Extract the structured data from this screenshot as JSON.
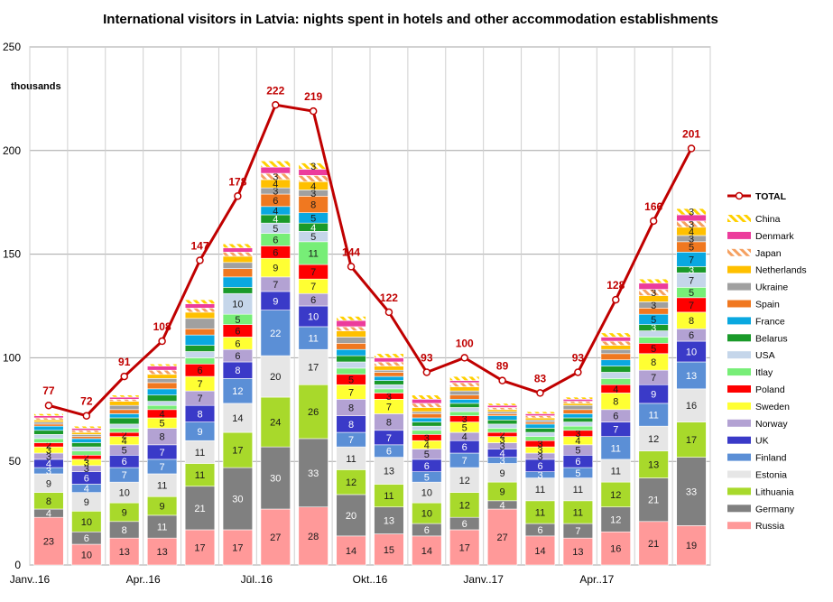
{
  "chart_data": {
    "type": "bar",
    "stacked": true,
    "title": "International visitors in Latvia: nights spent in hotels and other accommodation  establishments",
    "unit_label": "thousands",
    "ylim": [
      0,
      250
    ],
    "yticks": [
      "0",
      "50",
      "100",
      "150",
      "200",
      "250"
    ],
    "grid": true,
    "legend_position": "right",
    "x_tick_labels": [
      "Janv..16",
      "",
      "",
      "Apr..16",
      "",
      "",
      "Jūl..16",
      "",
      "",
      "Okt..16",
      "",
      "",
      "Janv..17",
      "",
      "",
      "Apr..17",
      "",
      ""
    ],
    "series": [
      {
        "name": "Russia",
        "color": "#ff9999",
        "pattern": "none",
        "values": [
          23,
          10,
          13,
          13,
          17,
          17,
          27,
          28,
          14,
          15,
          14,
          17,
          27,
          14,
          13,
          16,
          21,
          19
        ],
        "labels": [
          true,
          true,
          true,
          true,
          true,
          true,
          true,
          true,
          true,
          true,
          true,
          true,
          true,
          true,
          true,
          true,
          true,
          true
        ]
      },
      {
        "name": "Germany",
        "color": "#808080",
        "pattern": "none",
        "values": [
          4,
          6,
          8,
          11,
          21,
          30,
          30,
          33,
          20,
          13,
          6,
          6,
          4,
          6,
          7,
          12,
          21,
          33
        ],
        "labels": [
          true,
          true,
          true,
          true,
          true,
          true,
          true,
          true,
          true,
          true,
          true,
          true,
          true,
          true,
          true,
          true,
          true,
          true
        ]
      },
      {
        "name": "Lithuania",
        "color": "#a8d92b",
        "pattern": "none",
        "values": [
          8,
          10,
          9,
          9,
          11,
          17,
          24,
          26,
          12,
          11,
          10,
          12,
          9,
          11,
          11,
          12,
          13,
          17
        ],
        "labels": [
          true,
          true,
          true,
          true,
          true,
          true,
          true,
          true,
          true,
          true,
          true,
          true,
          true,
          true,
          true,
          true,
          true,
          true
        ]
      },
      {
        "name": "Estonia",
        "color": "#e6e6e6",
        "pattern": "none",
        "values": [
          9,
          9,
          10,
          11,
          11,
          14,
          20,
          17,
          11,
          13,
          10,
          12,
          9,
          11,
          11,
          11,
          12,
          16
        ],
        "labels": [
          true,
          true,
          true,
          true,
          true,
          true,
          true,
          true,
          true,
          true,
          true,
          true,
          true,
          true,
          true,
          true,
          true,
          true
        ]
      },
      {
        "name": "Finland",
        "color": "#5b8fd6",
        "pattern": "none",
        "values": [
          3,
          4,
          7,
          7,
          9,
          12,
          22,
          11,
          7,
          6,
          5,
          7,
          3,
          3,
          5,
          11,
          11,
          13
        ],
        "labels": [
          true,
          true,
          true,
          true,
          true,
          true,
          true,
          true,
          true,
          true,
          true,
          true,
          true,
          true,
          true,
          true,
          true,
          true
        ]
      },
      {
        "name": "UK",
        "color": "#3a3ac8",
        "pattern": "none",
        "values": [
          4,
          6,
          6,
          7,
          8,
          8,
          9,
          10,
          8,
          7,
          6,
          6,
          4,
          6,
          6,
          7,
          9,
          10
        ],
        "labels": [
          true,
          true,
          true,
          true,
          true,
          true,
          true,
          true,
          true,
          true,
          true,
          true,
          true,
          true,
          true,
          true,
          true,
          true
        ]
      },
      {
        "name": "Norway",
        "color": "#b3a2d3",
        "pattern": "none",
        "values": [
          3,
          3,
          5,
          8,
          7,
          6,
          7,
          6,
          8,
          8,
          5,
          4,
          3,
          3,
          5,
          6,
          7,
          6
        ],
        "labels": [
          true,
          true,
          true,
          true,
          true,
          true,
          true,
          true,
          true,
          true,
          true,
          true,
          true,
          true,
          true,
          true,
          true,
          true
        ]
      },
      {
        "name": "Sweden",
        "color": "#ffff33",
        "pattern": "none",
        "values": [
          3,
          3,
          4,
          5,
          7,
          6,
          9,
          7,
          7,
          7,
          4,
          5,
          3,
          3,
          4,
          8,
          8,
          8
        ],
        "labels": [
          true,
          true,
          true,
          true,
          true,
          true,
          true,
          true,
          true,
          true,
          true,
          true,
          true,
          true,
          true,
          true,
          true,
          true
        ]
      },
      {
        "name": "Poland",
        "color": "#ff0000",
        "pattern": "none",
        "values": [
          2,
          2,
          2,
          4,
          6,
          6,
          6,
          7,
          5,
          3,
          3,
          3,
          2,
          3,
          3,
          4,
          5,
          7
        ],
        "labels": [
          true,
          true,
          true,
          true,
          true,
          true,
          true,
          true,
          true,
          true,
          true,
          true,
          true,
          true,
          true,
          true,
          true,
          true
        ]
      },
      {
        "name": "Itlay",
        "color": "#77ee77",
        "pattern": "none",
        "values": [
          2,
          2,
          2,
          2,
          3,
          5,
          6,
          11,
          3,
          2,
          2,
          2,
          2,
          2,
          2,
          3,
          3,
          5
        ],
        "labels": [
          false,
          false,
          false,
          false,
          false,
          true,
          true,
          true,
          false,
          false,
          false,
          false,
          false,
          false,
          false,
          false,
          false,
          true
        ]
      },
      {
        "name": "USA",
        "color": "#c5d6ea",
        "pattern": "none",
        "values": [
          2,
          2,
          2,
          2,
          3,
          10,
          5,
          5,
          3,
          2,
          2,
          2,
          2,
          2,
          2,
          3,
          3,
          7
        ],
        "labels": [
          false,
          false,
          false,
          false,
          false,
          true,
          true,
          true,
          false,
          false,
          false,
          false,
          false,
          false,
          false,
          false,
          false,
          true
        ]
      },
      {
        "name": "Belarus",
        "color": "#1a9a2a",
        "pattern": "none",
        "values": [
          2,
          2,
          3,
          3,
          3,
          3,
          4,
          4,
          3,
          2,
          2,
          2,
          2,
          2,
          2,
          3,
          3,
          3
        ],
        "labels": [
          false,
          false,
          false,
          false,
          false,
          false,
          true,
          true,
          false,
          false,
          false,
          false,
          false,
          false,
          false,
          false,
          true,
          true
        ]
      },
      {
        "name": "France",
        "color": "#0aa8e0",
        "pattern": "none",
        "values": [
          2,
          2,
          2,
          3,
          5,
          5,
          4,
          5,
          3,
          2,
          2,
          2,
          2,
          2,
          2,
          3,
          5,
          7
        ],
        "labels": [
          false,
          false,
          false,
          false,
          false,
          false,
          true,
          true,
          false,
          false,
          false,
          false,
          false,
          false,
          false,
          false,
          true,
          true
        ]
      },
      {
        "name": "Spain",
        "color": "#f07820",
        "pattern": "none",
        "values": [
          1,
          1,
          2,
          3,
          3,
          4,
          6,
          8,
          3,
          2,
          2,
          2,
          1,
          1,
          2,
          3,
          3,
          5
        ],
        "labels": [
          false,
          false,
          false,
          false,
          false,
          false,
          true,
          true,
          false,
          false,
          false,
          false,
          false,
          false,
          false,
          false,
          false,
          true
        ]
      },
      {
        "name": "Ukraine",
        "color": "#a0a0a0",
        "pattern": "none",
        "values": [
          1,
          1,
          2,
          2,
          5,
          3,
          3,
          3,
          3,
          1,
          1,
          2,
          1,
          1,
          2,
          2,
          3,
          3
        ],
        "labels": [
          false,
          false,
          false,
          false,
          false,
          false,
          true,
          true,
          false,
          false,
          false,
          false,
          false,
          false,
          false,
          false,
          true,
          true
        ]
      },
      {
        "name": "Netherlands",
        "color": "#ffc000",
        "pattern": "none",
        "values": [
          1,
          1,
          2,
          2,
          3,
          3,
          4,
          4,
          3,
          2,
          2,
          2,
          1,
          1,
          1,
          2,
          3,
          4
        ],
        "labels": [
          false,
          false,
          false,
          false,
          false,
          false,
          true,
          true,
          false,
          false,
          false,
          false,
          false,
          false,
          false,
          false,
          false,
          true
        ]
      },
      {
        "name": "Japan",
        "color": "#f5a060",
        "pattern": "stripe",
        "values": [
          1,
          1,
          1,
          2,
          2,
          2,
          3,
          3,
          2,
          2,
          2,
          2,
          1,
          1,
          1,
          2,
          3,
          3
        ],
        "labels": [
          false,
          false,
          false,
          false,
          false,
          false,
          true,
          false,
          false,
          false,
          false,
          false,
          false,
          false,
          false,
          false,
          true,
          true
        ]
      },
      {
        "name": "Denmark",
        "color": "#ec3c9c",
        "pattern": "none",
        "values": [
          1,
          1,
          1,
          2,
          2,
          2,
          3,
          3,
          3,
          2,
          2,
          1,
          1,
          1,
          1,
          2,
          3,
          3
        ],
        "labels": [
          false,
          false,
          false,
          false,
          false,
          false,
          false,
          false,
          false,
          false,
          false,
          false,
          false,
          false,
          false,
          false,
          false,
          false
        ]
      },
      {
        "name": "China",
        "color": "#ffd000",
        "pattern": "stripe",
        "values": [
          1,
          1,
          1,
          1,
          2,
          2,
          3,
          3,
          2,
          2,
          2,
          2,
          1,
          1,
          1,
          2,
          2,
          3
        ],
        "labels": [
          false,
          false,
          false,
          false,
          false,
          false,
          false,
          true,
          false,
          false,
          false,
          false,
          false,
          false,
          false,
          false,
          false,
          true
        ]
      }
    ],
    "total": {
      "name": "TOTAL",
      "color": "#c00000",
      "values": [
        77,
        72,
        91,
        108,
        147,
        178,
        222,
        219,
        144,
        122,
        93,
        100,
        89,
        83,
        93,
        128,
        166,
        201
      ]
    }
  }
}
